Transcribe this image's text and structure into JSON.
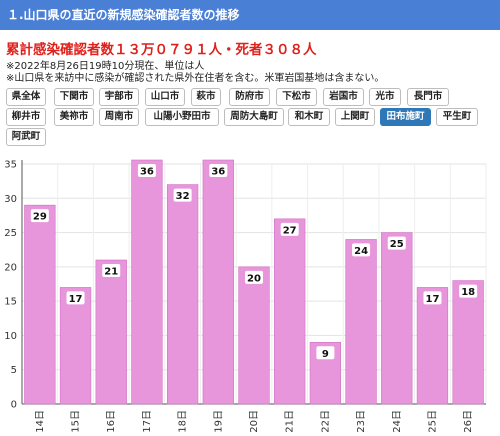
{
  "header": {
    "title": "１.山口県の直近の新規感染確認者数の推移"
  },
  "summary": {
    "headline": "累計感染確認者数１３万０７９１人・死者３０８人",
    "note1": "※2022年8月26日19時10分現在、単位は人",
    "note2": "※山口県を来訪中に感染が確認された県外在住者を含む。米軍岩国基地は含まない。"
  },
  "regions": {
    "buttons": [
      "県全体",
      "下関市",
      "宇部市",
      "山口市",
      "萩市",
      "防府市",
      "下松市",
      "岩国市",
      "光市",
      "長門市",
      "柳井市",
      "美祢市",
      "周南市",
      "山陽小野田市",
      "周防大島町",
      "和木町",
      "上関町",
      "田布施町",
      "平生町",
      "阿武町"
    ],
    "selected": "田布施町"
  },
  "chart_data": {
    "type": "bar",
    "categories": [
      "14日",
      "15日",
      "16日",
      "17日",
      "18日",
      "19日",
      "20日",
      "21日",
      "22日",
      "23日",
      "24日",
      "25日",
      "26日"
    ],
    "values": [
      29,
      17,
      21,
      36,
      32,
      36,
      20,
      27,
      9,
      24,
      25,
      17,
      18
    ],
    "ylim": [
      0,
      35
    ],
    "yticks": [
      0,
      5,
      10,
      15,
      20,
      25,
      30,
      35
    ],
    "bar_color": "#e896dc",
    "bar_border": "#d070c4",
    "grid": true,
    "xlabel": "",
    "ylabel": ""
  }
}
